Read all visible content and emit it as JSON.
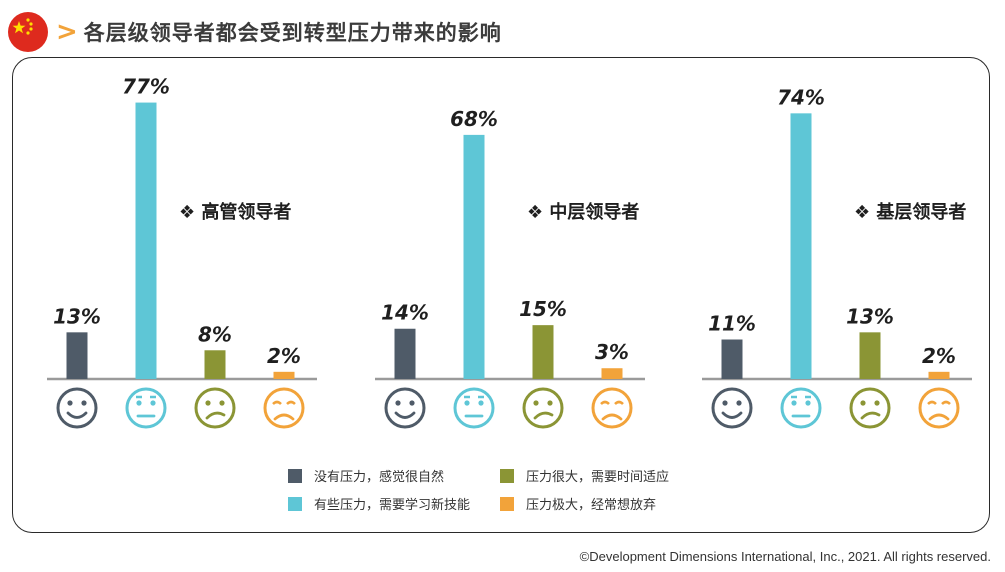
{
  "header": {
    "flag_icon": "china-flag-icon",
    "chevron_icon": "chevron-right-icon",
    "title": "各层级领导者都会受到转型压力带来的影响"
  },
  "chart_data": {
    "type": "bar",
    "categories": [
      "没有压力，感觉很自然",
      "有些压力，需要学习新技能",
      "压力很大，需要时间适应",
      "压力极大，经常想放弃"
    ],
    "colors": [
      "#4f5b68",
      "#5ec6d6",
      "#8b9535",
      "#f2a33a"
    ],
    "face_icons": [
      "smiling-face-icon",
      "neutral-face-icon",
      "confused-face-icon",
      "worried-face-icon"
    ],
    "groups": [
      {
        "name": "高管领导者",
        "values": [
          13,
          77,
          8,
          2
        ]
      },
      {
        "name": "中层领导者",
        "values": [
          14,
          68,
          15,
          3
        ]
      },
      {
        "name": "基层领导者",
        "values": [
          11,
          74,
          13,
          2
        ]
      }
    ],
    "unit": "%",
    "ylim": [
      0,
      80
    ]
  },
  "legend": {
    "items": [
      {
        "label": "没有压力，感觉很自然",
        "color": "#4f5b68"
      },
      {
        "label": "压力很大，需要时间适应",
        "color": "#8b9535"
      },
      {
        "label": "有些压力，需要学习新技能",
        "color": "#5ec6d6"
      },
      {
        "label": "压力极大，经常想放弃",
        "color": "#f2a33a"
      }
    ]
  },
  "footer": {
    "copyright": "©Development Dimensions International, Inc., 2021. All rights reserved."
  }
}
